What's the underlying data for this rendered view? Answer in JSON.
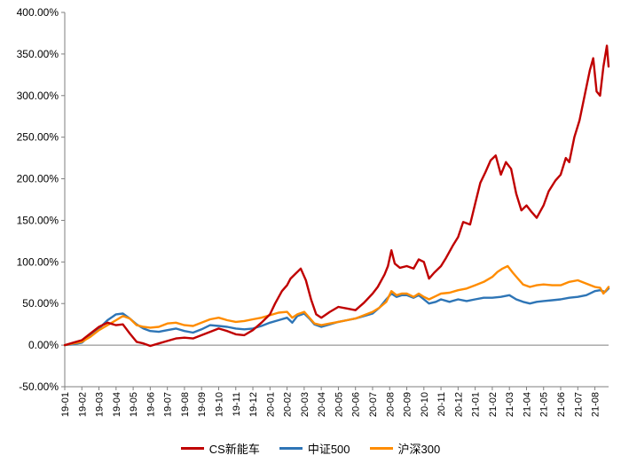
{
  "chart_data": {
    "type": "line",
    "title": "",
    "xlabel": "",
    "ylabel": "",
    "ylim": [
      -50,
      400
    ],
    "y_ticks": [
      "400.00%",
      "350.00%",
      "300.00%",
      "250.00%",
      "200.00%",
      "150.00%",
      "100.00%",
      "50.00%",
      "0.00%",
      "-50.00%"
    ],
    "x_ticks": [
      "19-01",
      "19-02",
      "19-03",
      "19-04",
      "19-05",
      "19-06",
      "19-07",
      "19-08",
      "19-09",
      "19-10",
      "19-11",
      "19-12",
      "20-01",
      "20-02",
      "20-03",
      "20-04",
      "20-05",
      "20-06",
      "20-07",
      "20-08",
      "20-09",
      "20-10",
      "20-11",
      "20-12",
      "21-01",
      "21-02",
      "21-03",
      "21-04",
      "21-05",
      "21-06",
      "21-07",
      "21-08"
    ],
    "grid": false,
    "legend_position": "bottom",
    "series": [
      {
        "name": "CS新能车",
        "color": "#c00000",
        "points": [
          [
            0,
            0
          ],
          [
            0.5,
            3
          ],
          [
            1,
            6
          ],
          [
            1.5,
            14
          ],
          [
            2,
            22
          ],
          [
            2.5,
            27
          ],
          [
            3,
            24
          ],
          [
            3.4,
            25
          ],
          [
            3.8,
            14
          ],
          [
            4.2,
            4
          ],
          [
            4.6,
            2
          ],
          [
            5,
            -1
          ],
          [
            5.5,
            2
          ],
          [
            6,
            5
          ],
          [
            6.5,
            8
          ],
          [
            7,
            9
          ],
          [
            7.5,
            8
          ],
          [
            8,
            12
          ],
          [
            8.5,
            16
          ],
          [
            9,
            20
          ],
          [
            9.5,
            17
          ],
          [
            10,
            13
          ],
          [
            10.5,
            12
          ],
          [
            11,
            18
          ],
          [
            11.5,
            27
          ],
          [
            12,
            37
          ],
          [
            12.3,
            50
          ],
          [
            12.7,
            65
          ],
          [
            13,
            72
          ],
          [
            13.2,
            80
          ],
          [
            13.5,
            86
          ],
          [
            13.8,
            92
          ],
          [
            14.1,
            78
          ],
          [
            14.4,
            55
          ],
          [
            14.7,
            37
          ],
          [
            15,
            33
          ],
          [
            15.5,
            40
          ],
          [
            16,
            46
          ],
          [
            16.5,
            44
          ],
          [
            17,
            42
          ],
          [
            17.5,
            51
          ],
          [
            18,
            62
          ],
          [
            18.3,
            70
          ],
          [
            18.7,
            85
          ],
          [
            18.9,
            95
          ],
          [
            19.1,
            114
          ],
          [
            19.3,
            98
          ],
          [
            19.6,
            93
          ],
          [
            20,
            95
          ],
          [
            20.4,
            92
          ],
          [
            20.7,
            103
          ],
          [
            21,
            100
          ],
          [
            21.3,
            80
          ],
          [
            21.6,
            87
          ],
          [
            22,
            95
          ],
          [
            22.3,
            105
          ],
          [
            22.7,
            120
          ],
          [
            23,
            130
          ],
          [
            23.3,
            148
          ],
          [
            23.7,
            145
          ],
          [
            24,
            170
          ],
          [
            24.3,
            195
          ],
          [
            24.6,
            208
          ],
          [
            24.9,
            222
          ],
          [
            25.2,
            228
          ],
          [
            25.5,
            205
          ],
          [
            25.8,
            220
          ],
          [
            26.1,
            212
          ],
          [
            26.4,
            182
          ],
          [
            26.7,
            162
          ],
          [
            27,
            168
          ],
          [
            27.3,
            160
          ],
          [
            27.6,
            153
          ],
          [
            28,
            168
          ],
          [
            28.3,
            185
          ],
          [
            28.7,
            198
          ],
          [
            29,
            205
          ],
          [
            29.3,
            225
          ],
          [
            29.5,
            220
          ],
          [
            29.8,
            250
          ],
          [
            30.1,
            270
          ],
          [
            30.4,
            300
          ],
          [
            30.7,
            330
          ],
          [
            30.9,
            345
          ],
          [
            31.1,
            305
          ],
          [
            31.3,
            300
          ],
          [
            31.5,
            335
          ],
          [
            31.7,
            360
          ],
          [
            31.8,
            335
          ]
        ]
      },
      {
        "name": "中证500",
        "color": "#2e75b6",
        "points": [
          [
            0,
            0
          ],
          [
            0.5,
            1
          ],
          [
            1,
            3
          ],
          [
            1.5,
            12
          ],
          [
            2,
            20
          ],
          [
            2.5,
            30
          ],
          [
            3,
            37
          ],
          [
            3.4,
            38
          ],
          [
            3.8,
            32
          ],
          [
            4.2,
            25
          ],
          [
            4.6,
            20
          ],
          [
            5,
            17
          ],
          [
            5.5,
            16
          ],
          [
            6,
            18
          ],
          [
            6.5,
            20
          ],
          [
            7,
            17
          ],
          [
            7.5,
            15
          ],
          [
            8,
            19
          ],
          [
            8.5,
            24
          ],
          [
            9,
            23
          ],
          [
            9.5,
            22
          ],
          [
            10,
            20
          ],
          [
            10.5,
            19
          ],
          [
            11,
            20
          ],
          [
            11.5,
            23
          ],
          [
            12,
            27
          ],
          [
            12.5,
            30
          ],
          [
            13,
            33
          ],
          [
            13.3,
            27
          ],
          [
            13.6,
            35
          ],
          [
            14,
            38
          ],
          [
            14.3,
            32
          ],
          [
            14.6,
            25
          ],
          [
            15,
            22
          ],
          [
            15.5,
            25
          ],
          [
            16,
            28
          ],
          [
            16.5,
            30
          ],
          [
            17,
            32
          ],
          [
            17.5,
            35
          ],
          [
            18,
            38
          ],
          [
            18.4,
            45
          ],
          [
            18.8,
            55
          ],
          [
            19.1,
            62
          ],
          [
            19.4,
            58
          ],
          [
            19.7,
            60
          ],
          [
            20,
            60
          ],
          [
            20.4,
            57
          ],
          [
            20.7,
            60
          ],
          [
            21,
            55
          ],
          [
            21.3,
            50
          ],
          [
            21.7,
            52
          ],
          [
            22,
            55
          ],
          [
            22.5,
            52
          ],
          [
            23,
            55
          ],
          [
            23.5,
            53
          ],
          [
            24,
            55
          ],
          [
            24.5,
            57
          ],
          [
            25,
            57
          ],
          [
            25.5,
            58
          ],
          [
            26,
            60
          ],
          [
            26.4,
            55
          ],
          [
            26.8,
            52
          ],
          [
            27.2,
            50
          ],
          [
            27.6,
            52
          ],
          [
            28,
            53
          ],
          [
            28.5,
            54
          ],
          [
            29,
            55
          ],
          [
            29.5,
            57
          ],
          [
            30,
            58
          ],
          [
            30.5,
            60
          ],
          [
            31,
            65
          ],
          [
            31.3,
            66
          ],
          [
            31.6,
            64
          ],
          [
            31.8,
            68
          ]
        ]
      },
      {
        "name": "沪深300",
        "color": "#ff8c00",
        "points": [
          [
            0,
            0
          ],
          [
            0.5,
            2
          ],
          [
            1,
            4
          ],
          [
            1.5,
            10
          ],
          [
            2,
            18
          ],
          [
            2.5,
            24
          ],
          [
            3,
            30
          ],
          [
            3.4,
            35
          ],
          [
            3.8,
            32
          ],
          [
            4.2,
            24
          ],
          [
            4.6,
            22
          ],
          [
            5,
            21
          ],
          [
            5.5,
            22
          ],
          [
            6,
            26
          ],
          [
            6.5,
            27
          ],
          [
            7,
            24
          ],
          [
            7.5,
            23
          ],
          [
            8,
            27
          ],
          [
            8.5,
            31
          ],
          [
            9,
            33
          ],
          [
            9.5,
            30
          ],
          [
            10,
            28
          ],
          [
            10.5,
            29
          ],
          [
            11,
            31
          ],
          [
            11.5,
            33
          ],
          [
            12,
            36
          ],
          [
            12.5,
            39
          ],
          [
            13,
            40
          ],
          [
            13.3,
            33
          ],
          [
            13.6,
            37
          ],
          [
            14,
            40
          ],
          [
            14.3,
            33
          ],
          [
            14.6,
            26
          ],
          [
            15,
            24
          ],
          [
            15.5,
            26
          ],
          [
            16,
            28
          ],
          [
            16.5,
            30
          ],
          [
            17,
            32
          ],
          [
            17.5,
            36
          ],
          [
            18,
            40
          ],
          [
            18.4,
            45
          ],
          [
            18.8,
            52
          ],
          [
            19.1,
            65
          ],
          [
            19.4,
            60
          ],
          [
            19.7,
            62
          ],
          [
            20,
            62
          ],
          [
            20.4,
            58
          ],
          [
            20.7,
            62
          ],
          [
            21,
            58
          ],
          [
            21.3,
            55
          ],
          [
            21.7,
            59
          ],
          [
            22,
            62
          ],
          [
            22.5,
            63
          ],
          [
            23,
            66
          ],
          [
            23.5,
            68
          ],
          [
            24,
            72
          ],
          [
            24.5,
            76
          ],
          [
            25,
            82
          ],
          [
            25.3,
            88
          ],
          [
            25.6,
            92
          ],
          [
            25.9,
            95
          ],
          [
            26.2,
            87
          ],
          [
            26.5,
            80
          ],
          [
            26.8,
            73
          ],
          [
            27.2,
            70
          ],
          [
            27.6,
            72
          ],
          [
            28,
            73
          ],
          [
            28.5,
            72
          ],
          [
            29,
            72
          ],
          [
            29.5,
            76
          ],
          [
            30,
            78
          ],
          [
            30.5,
            74
          ],
          [
            31,
            70
          ],
          [
            31.3,
            69
          ],
          [
            31.5,
            62
          ],
          [
            31.8,
            70
          ]
        ]
      }
    ]
  }
}
